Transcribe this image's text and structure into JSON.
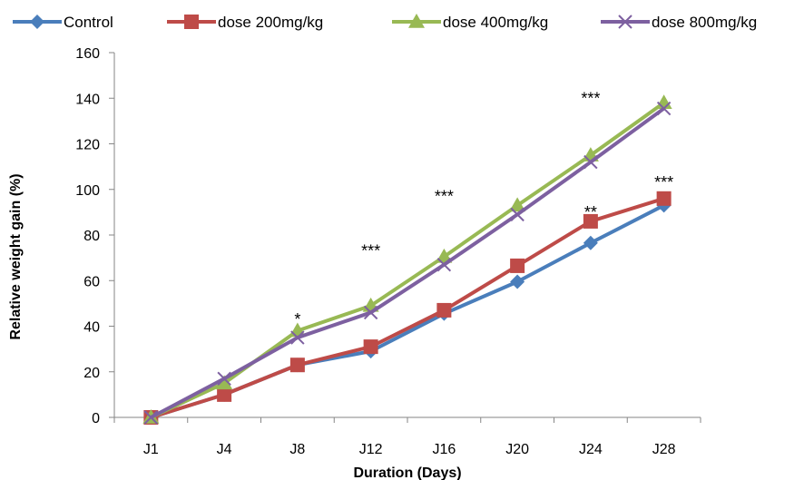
{
  "chart_data": {
    "type": "line",
    "categories": [
      "J1",
      "J4",
      "J8",
      "J12",
      "J16",
      "J20",
      "J24",
      "J28"
    ],
    "xlabel": "Duration (Days)",
    "ylabel": "Relative  weight gain (%)",
    "ylim": [
      0,
      160
    ],
    "yticks": [
      0,
      20,
      40,
      60,
      80,
      100,
      120,
      140,
      160
    ],
    "grid": false,
    "legend_position": "top",
    "series": [
      {
        "name": "Control",
        "color": "#4a7ebb",
        "marker": "diamond",
        "values": [
          0,
          10,
          23,
          29,
          45.5,
          59.5,
          76.5,
          93
        ]
      },
      {
        "name": "dose 200mg/kg",
        "color": "#be4b48",
        "marker": "square",
        "values": [
          0,
          10,
          23,
          31,
          47,
          66.5,
          86,
          96
        ]
      },
      {
        "name": "dose 400mg/kg",
        "color": "#98b954",
        "marker": "triangle",
        "values": [
          0,
          15,
          38,
          49,
          70.5,
          93,
          115,
          138
        ]
      },
      {
        "name": "dose 800mg/kg",
        "color": "#7d60a0",
        "marker": "x",
        "values": [
          0,
          17,
          35,
          46,
          67,
          89,
          112,
          135.5
        ]
      }
    ],
    "annotations": [
      {
        "text": "*",
        "category": "J8",
        "y": 43
      },
      {
        "text": "***",
        "category": "J12",
        "y": 73
      },
      {
        "text": "***",
        "category": "J16",
        "y": 97
      },
      {
        "text": "**",
        "category": "J24",
        "y": 90
      },
      {
        "text": "***",
        "category": "J24",
        "y": 140
      },
      {
        "text": "***",
        "category": "J28",
        "y": 103
      }
    ]
  }
}
